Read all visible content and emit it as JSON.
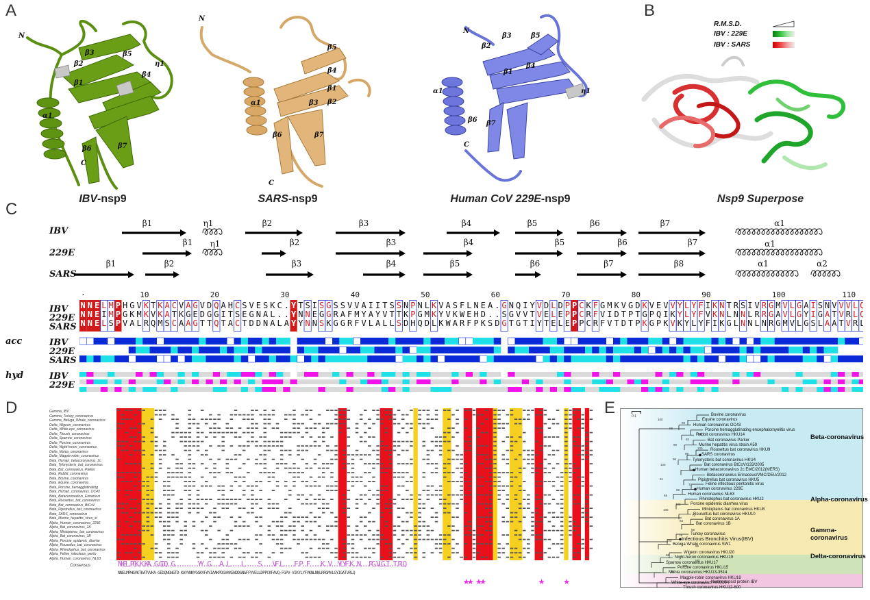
{
  "panels": {
    "A": "A",
    "B": "B",
    "C": "C",
    "D": "D",
    "E": "E"
  },
  "panel_a": {
    "titles": [
      {
        "bold": "IBV",
        "rest": "-nsp9"
      },
      {
        "bold": "SARS",
        "rest": "-nsp9"
      },
      {
        "bold": "Human CoV 229E",
        "rest": "-nsp9"
      }
    ],
    "ibv_labels": [
      "N",
      "β2",
      "β3",
      "β5",
      "β4",
      "η1",
      "β1",
      "α1",
      "β6",
      "C",
      "β7"
    ],
    "sars_labels": [
      "N",
      "β5",
      "β4",
      "β1",
      "β3",
      "β2",
      "α1",
      "β6",
      "β7",
      "C"
    ],
    "hcov_labels": [
      "N",
      "β2",
      "β3",
      "β5",
      "β1",
      "β4",
      "α1",
      "η1",
      "β6",
      "β7",
      "C"
    ]
  },
  "panel_b": {
    "title": "Nsp9 Superpose",
    "rmsd_label": "R.M.S.D.",
    "ibv_229e_label": "IBV : 229E",
    "ibv_sars_label": "IBV : SARS",
    "colors": {
      "green": "#2fbf3a",
      "red": "#d83030",
      "grey": "#cfcfcf"
    }
  },
  "panel_c": {
    "structure_rows": [
      "IBV",
      "229E",
      "SARS"
    ],
    "ibv_ss": [
      "β1",
      "η1",
      "β2",
      "β3",
      "β4",
      "β5",
      "β6",
      "β7",
      "α1"
    ],
    "e229_ss": [
      "β1",
      "η1",
      "β2",
      "β3",
      "β4",
      "β5",
      "β6",
      "β7",
      "α1"
    ],
    "sars_ss": [
      "β1",
      "β2",
      "β3",
      "β4",
      "β5",
      "β6",
      "β7",
      "β8",
      "α1",
      "α2"
    ],
    "ruler": [
      "10",
      "20",
      "30",
      "40",
      "50",
      "60",
      "70",
      "80",
      "90",
      "100",
      "110"
    ],
    "sequences": [
      {
        "name": "IBV",
        "seq": "NNELMPHGVKTKACVAGVDQAHCSVESKC.YTSISGSSVVAIITSSNPNLKVASFLNEA.GNQIYVDLDPPCKFGMKVGDKVEVVYLYFIKNTRSIVRGMVLGAISNVVVLQ"
      },
      {
        "name": "229E",
        "seq": "NNEIMPGKMKVKATKGEDGGITSEGNAL..YNNEGGRAFMYAYVTTKPGMKYVKWEHD..SGVVTVELEPPCRFVIDTPTGPQIKYLYFVKNLNNLRRGAVLGYIGATVRLQ"
      },
      {
        "name": "SARS",
        "seq": "NNELSPVALRQMSCAAGTTQTACTDDNALAYYNNSKGGRFVLALLSDHQDLKWARFPKSDGTGTIYTELEPPCRFVTDTPKGPKVKYLYFIKGLNNLNRGMVLGSLAATVRLQ"
      }
    ],
    "acc_label": "acc",
    "hyd_label": "hyd",
    "acc_rows": [
      "IBV",
      "229E",
      "SARS"
    ],
    "hyd_rows": [
      "IBV",
      "229E"
    ],
    "colors": {
      "red": "#d11a1a",
      "blue": "#2231c8",
      "acc_blue": "#0a2ad8",
      "acc_cyan": "#1fe0e6",
      "hyd_magenta": "#f012e6",
      "hyd_grey": "#d9d9d9"
    }
  },
  "panel_d": {
    "taxa": [
      "Gamma_IBV",
      "Gamma_Turkey_coronavirus",
      "Gamma_Beluga_Whale_coronavirus",
      "Delta_Wigeon_coronavirus",
      "Delta_White-eye_coronavirus",
      "Delta_Thrush_coronavirus",
      "Delta_Sparrow_coronavirus",
      "Delta_Porcine_coronavirus",
      "Delta_Night-heron_coronavirus",
      "Delta_Munia_coronavirus",
      "Delta_Magpie-robin_coronavirus",
      "Beta_Human_betacoronavirus_2c",
      "Beta_Tylonycteris_bat_coronavirus",
      "Beta_Bat_coronavirus_Parker",
      "Beta_Rabbit_coronavirus",
      "Beta_Bovine_coronavirus",
      "Beta_Equine_coronavirus",
      "Beta_Porcine_hemagglutinating",
      "Beta_Human_coronavirus_OC43",
      "Beta_Betacoronavirus_Erinaceus",
      "Beta_Rousettus_bat_coronavirus",
      "Beta_Bat_coronavirus_BtCoV",
      "Beta_Pipistrellus_bat_coronavirus",
      "Beta_SARS_coronavirus",
      "Beta_Murine_hepatitis_virus_st",
      "Alpha_Human_coronavirus_229E",
      "Alpha_Bat_coronavirus_1A",
      "Alpha_Miniopterus_bat_coronavirus",
      "Alpha_Bat_coronavirus_1B",
      "Alpha_Porcine_epidemic_diarrhe",
      "Alpha_Rousettus_bat_coronavirus",
      "Alpha_Rhinolophus_bat_coronavirus",
      "Alpha_Feline_infectious_perito",
      "Alpha_Human_coronavirus_NL63"
    ],
    "consensus_label": "Consensus",
    "consensus_logo": "NNEL.PGK.K.KA..G.GDQ..G..........YY..G....A..L.....L......S.....VF.L.....F.P..F.....K..V...YLYF.K..N....RG.VLG.I..T.RLQ",
    "consensus_seq": "NNELMPHGVKTKATVVKA·GEDQNGNGTD·KAYVNNYGGKVFAYIAAKPDGVKKEWDDGNGFFVVELLDPPCKFAVQ·FGPV·VIKYLYFVKNLNNLRRGMVLGYIGATVRLQ",
    "colors": {
      "red": "#e8101a",
      "yellow": "#f5d020",
      "star": "#ee2ee8"
    }
  },
  "panel_e": {
    "scale": "0.1",
    "clades": [
      "Beta-coronavirus",
      "Alpha-coronavirus",
      "Gamma-coronavirus",
      "Delta-coronavirus"
    ],
    "beta_taxa": [
      "Bovine coronavirus",
      "Equine coronavirus",
      "Human coronavirus OC43",
      "Porcine hemagglutinating encephalomyelitis virus",
      "Rabbit coronavirus HKU14",
      "Bat coronavirus Parker",
      "Murine hepatitis virus strain A59",
      "Rousettus bat coronavirus HKU9",
      "SARS coronavirus",
      "Tylonycteris bat coronavirus HKU4",
      "Bat coronavirus BtCoV/133/2005",
      "Human betacoronavirus 2c EMC/2012(MERS)",
      "Betacoronavirus Erinaceus/VMC/DEU/2012",
      "Pipistrellus bat coronavirus HKU5"
    ],
    "alpha_taxa": [
      "Feline infectious peritonitis virus",
      "Human coronavirus 229E",
      "Human coronavirus NL63",
      "Rhinolophus bat coronavirus HKU2",
      "Porcine epidemic diarrhea virus",
      "Miniopterus bat coronavirus HKU8",
      "Rousettus bat coronavirus HKU10",
      "Bat coronavirus 1A",
      "Bat coronavirus 1B"
    ],
    "gamma_taxa": [
      "Turkey coronavirus",
      "Infectious Bronchitis Virus(IBV)",
      "Beluga Whale coronavirus SW1"
    ],
    "delta_taxa": [
      "Wigeon coronavirus HKU20",
      "Night-heron coronavirus HKU19",
      "Sparrow coronavirus HKU17",
      "Porcine coronavirus HKU15",
      "Munia coronavirus HKU13-3514",
      "Magpie-robin coronavirus HKU18",
      "White-eye coronavirus HKU16",
      "Thrush coronavirus HKU12-600"
    ],
    "outgroup": "Nucleocapsid protein IBV",
    "bootstraps": [
      "100",
      "99",
      "100",
      "98",
      "83",
      "99",
      "100",
      "92",
      "100",
      "99",
      "72",
      "100",
      "100",
      "98",
      "96",
      "71",
      "100",
      "78",
      "100",
      "98",
      "99",
      "81",
      "100",
      "88",
      "96",
      "99",
      "100"
    ],
    "colors": {
      "beta": "#c7eaf3",
      "alpha": "#f6eab2",
      "gamma": "#cfe3b8",
      "delta": "#f2c6e0"
    }
  }
}
